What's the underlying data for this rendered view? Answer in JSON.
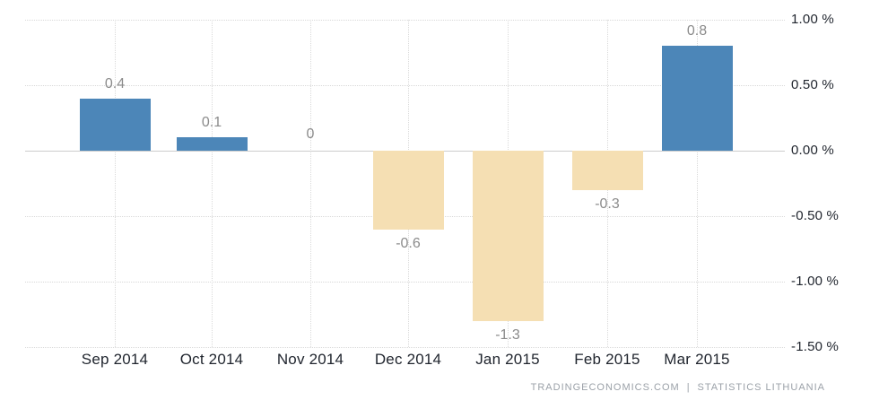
{
  "chart_data": {
    "type": "bar",
    "categories": [
      "Sep 2014",
      "Oct 2014",
      "Nov 2014",
      "Dec 2014",
      "Jan 2015",
      "Feb 2015",
      "Mar 2015"
    ],
    "values": [
      0.4,
      0.1,
      0,
      -0.6,
      -1.3,
      -0.3,
      0.8
    ],
    "data_labels": [
      "0.4",
      "0.1",
      "0",
      "-0.6",
      "-1.3",
      "-0.3",
      "0.8"
    ],
    "title": "",
    "xlabel": "",
    "ylabel": "",
    "ylim": [
      -1.5,
      1.0
    ],
    "y_ticks": [
      {
        "value": 1.0,
        "label": "1.00 %"
      },
      {
        "value": 0.5,
        "label": "0.50 %"
      },
      {
        "value": 0.0,
        "label": "0.00 %"
      },
      {
        "value": -0.5,
        "label": "-0.50 %"
      },
      {
        "value": -1.0,
        "label": "-1.00 %"
      },
      {
        "value": -1.5,
        "label": "-1.50 %"
      }
    ],
    "grid": "dotted",
    "legend": "none",
    "colors": {
      "positive_bar": "#4C86B8",
      "negative_bar": "#F5DFB3",
      "gridline": "#d8d8d8",
      "zero_line": "#cdcdcd",
      "value_label": "#8b8b8b",
      "axis_label": "#1f242d",
      "attribution": "#9ba1a8"
    }
  },
  "footer": {
    "source_primary": "TRADINGECONOMICS.COM",
    "separator": "|",
    "source_secondary": "STATISTICS LITHUANIA"
  }
}
